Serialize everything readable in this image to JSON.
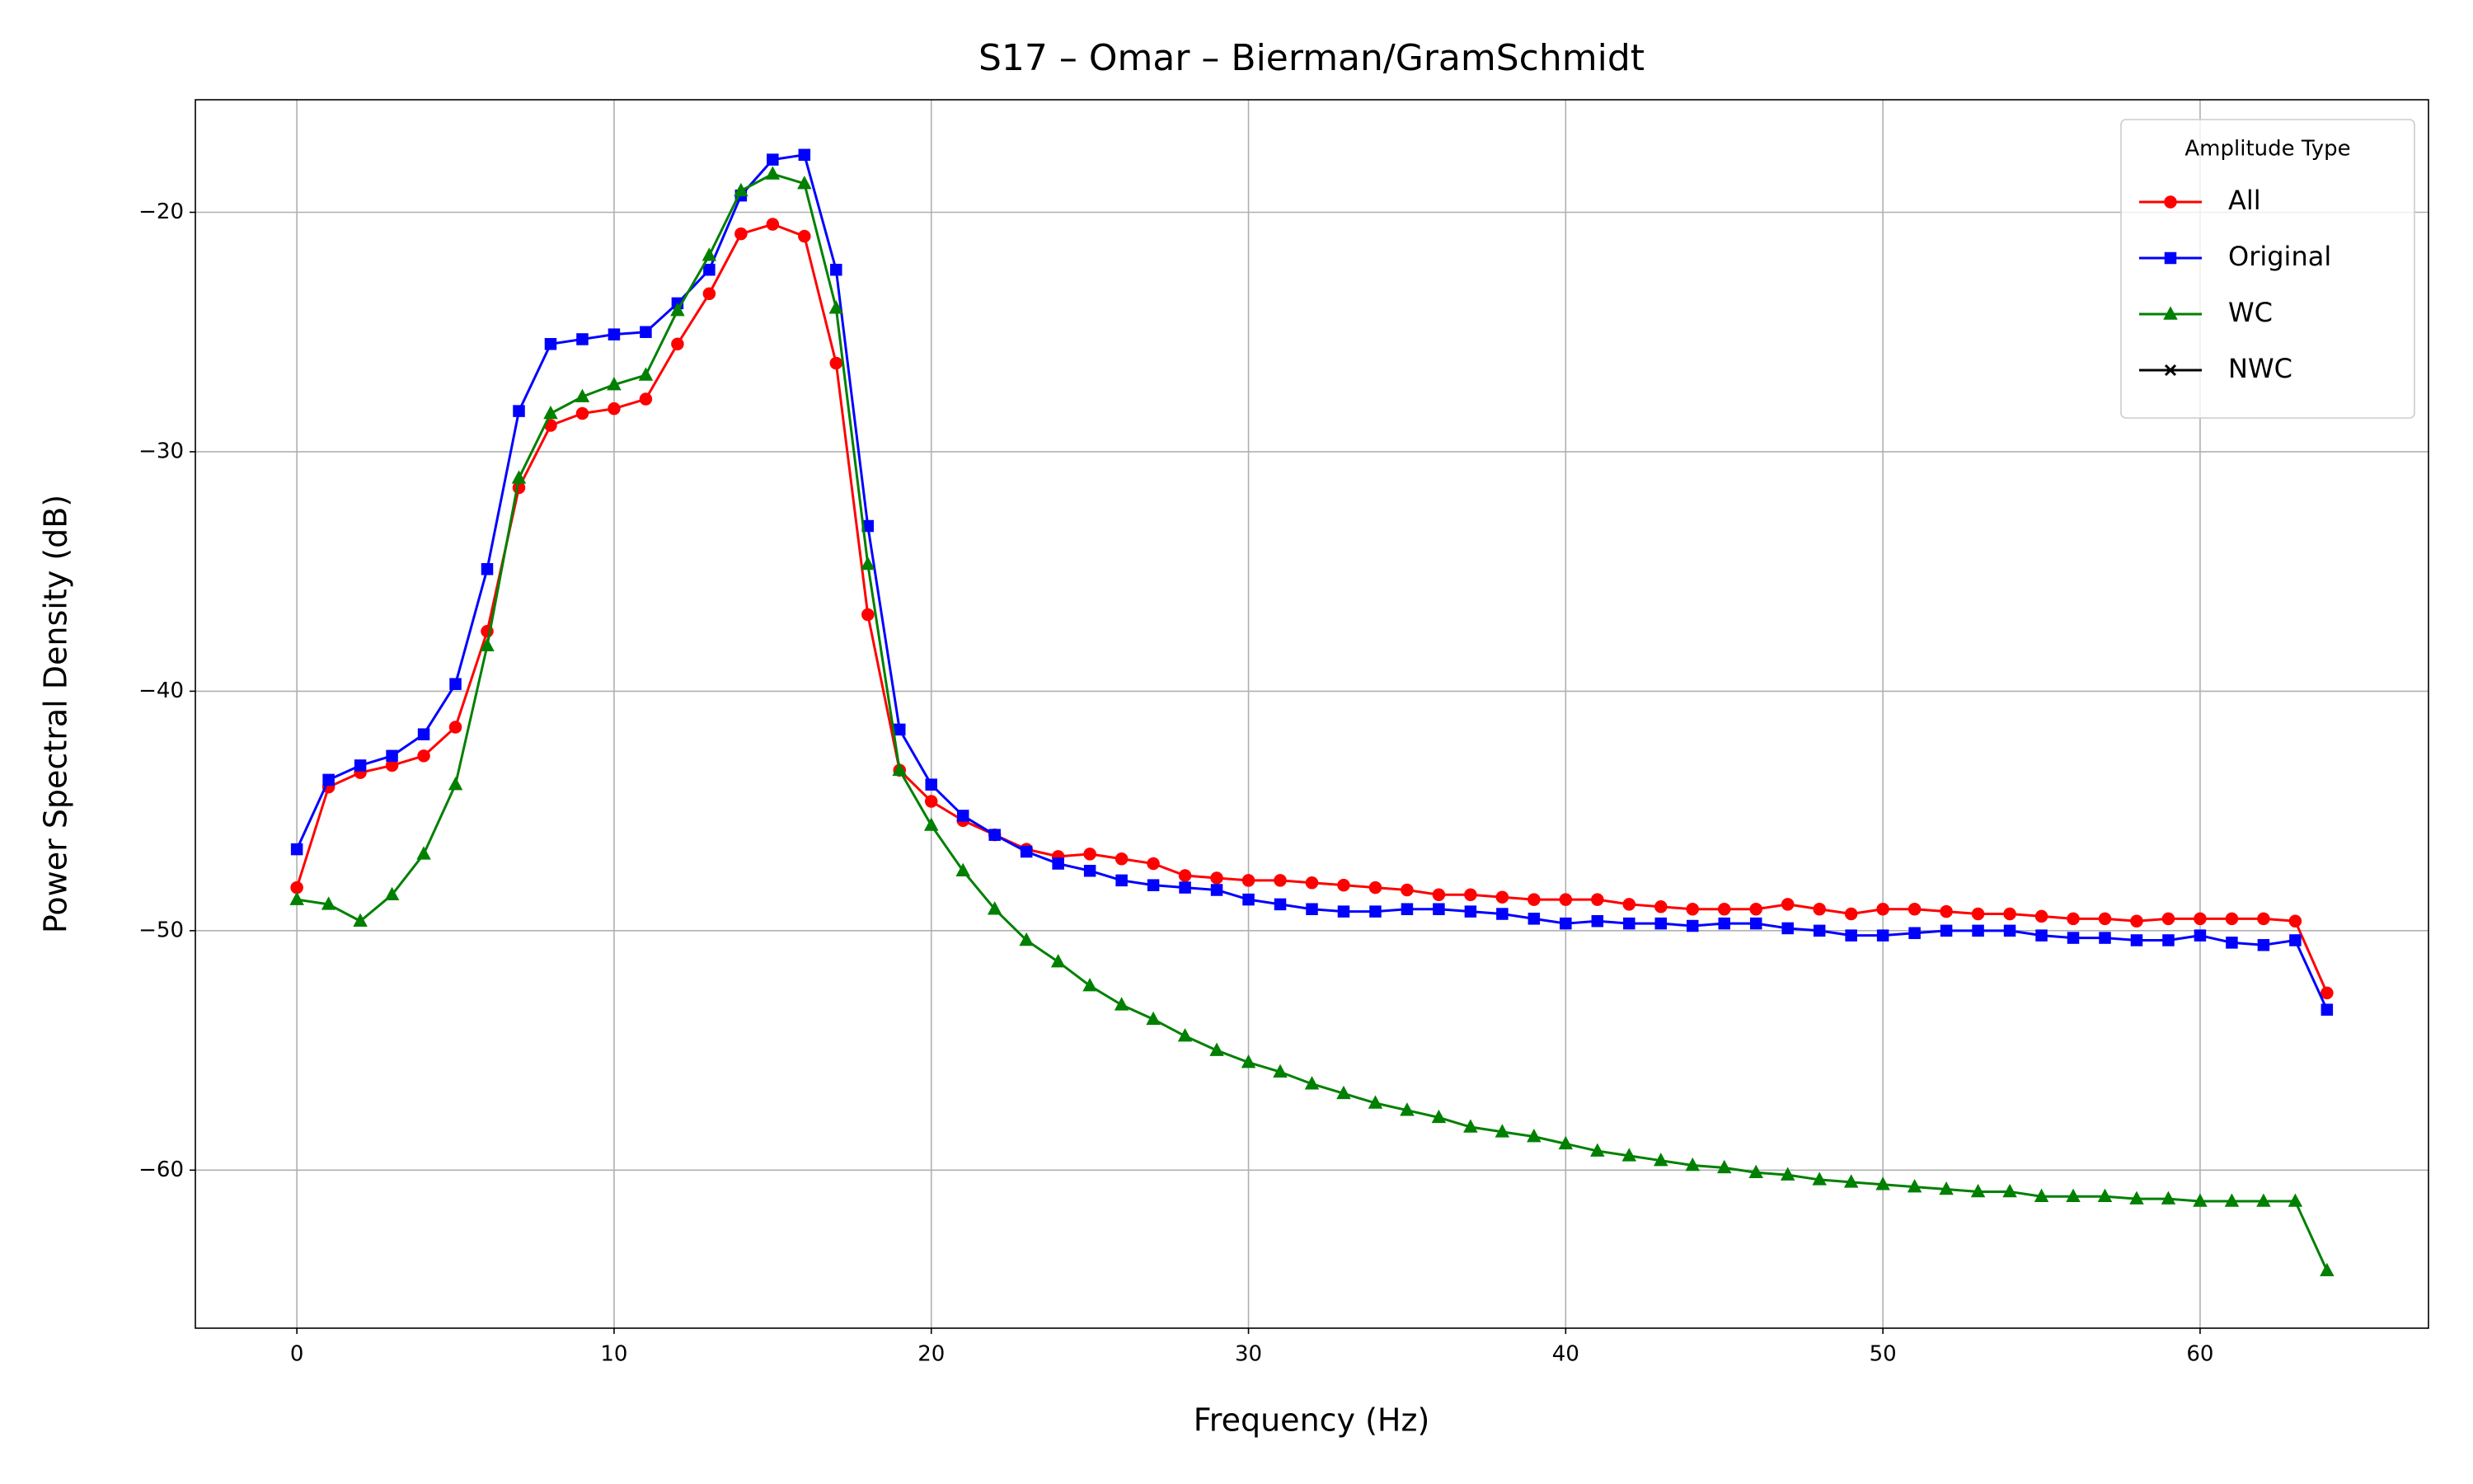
{
  "chart_data": {
    "type": "line",
    "title": "S17 – Omar – Bierman/GramSchmidt",
    "xlabel": "Frequency (Hz)",
    "ylabel": "Power Spectral Density (dB)",
    "x": [
      0,
      1,
      2,
      3,
      4,
      5,
      6,
      7,
      8,
      9,
      10,
      11,
      12,
      13,
      14,
      15,
      16,
      17,
      18,
      19,
      20,
      21,
      22,
      23,
      24,
      25,
      26,
      27,
      28,
      29,
      30,
      31,
      32,
      33,
      34,
      35,
      36,
      37,
      38,
      39,
      40,
      41,
      42,
      43,
      44,
      45,
      46,
      47,
      48,
      49,
      50,
      51,
      52,
      53,
      54,
      55,
      56,
      57,
      58,
      59,
      60,
      61,
      62,
      63,
      64
    ],
    "series": [
      {
        "name": "All",
        "color": "#ff0000",
        "marker": "o",
        "values": [
          -48.2,
          -44.0,
          -43.4,
          -43.1,
          -42.7,
          -41.5,
          -37.5,
          -31.5,
          -28.9,
          -28.4,
          -28.2,
          -27.8,
          -25.5,
          -23.4,
          -20.9,
          -20.5,
          -21.0,
          -26.3,
          -36.8,
          -43.3,
          -44.6,
          -45.4,
          -46.0,
          -46.6,
          -46.9,
          -46.8,
          -47.0,
          -47.2,
          -47.7,
          -47.8,
          -47.9,
          -47.9,
          -48.0,
          -48.1,
          -48.2,
          -48.3,
          -48.5,
          -48.5,
          -48.6,
          -48.7,
          -48.7,
          -48.7,
          -48.9,
          -49.0,
          -49.1,
          -49.1,
          -49.1,
          -48.9,
          -49.1,
          -49.3,
          -49.1,
          -49.1,
          -49.2,
          -49.3,
          -49.3,
          -49.4,
          -49.5,
          -49.5,
          -49.6,
          -49.5,
          -49.5,
          -49.5,
          -49.5,
          -49.6,
          -52.6
        ]
      },
      {
        "name": "Original",
        "color": "#0000ff",
        "marker": "s",
        "values": [
          -46.6,
          -43.7,
          -43.1,
          -42.7,
          -41.8,
          -39.7,
          -34.9,
          -28.3,
          -25.5,
          -25.3,
          -25.1,
          -25.0,
          -23.8,
          -22.4,
          -19.3,
          -17.8,
          -17.6,
          -22.4,
          -33.1,
          -41.6,
          -43.9,
          -45.2,
          -46.0,
          -46.7,
          -47.2,
          -47.5,
          -47.9,
          -48.1,
          -48.2,
          -48.3,
          -48.7,
          -48.9,
          -49.1,
          -49.2,
          -49.2,
          -49.1,
          -49.1,
          -49.2,
          -49.3,
          -49.5,
          -49.7,
          -49.6,
          -49.7,
          -49.7,
          -49.8,
          -49.7,
          -49.7,
          -49.9,
          -50.0,
          -50.2,
          -50.2,
          -50.1,
          -50.0,
          -50.0,
          -50.0,
          -50.2,
          -50.3,
          -50.3,
          -50.4,
          -50.4,
          -50.2,
          -50.5,
          -50.6,
          -50.4,
          -53.3
        ]
      },
      {
        "name": "WC",
        "color": "#008000",
        "marker": "^",
        "values": [
          -48.7,
          -48.9,
          -49.6,
          -48.5,
          -46.8,
          -43.9,
          -38.1,
          -31.1,
          -28.4,
          -27.7,
          -27.2,
          -26.8,
          -24.1,
          -21.8,
          -19.1,
          -18.4,
          -18.8,
          -24.0,
          -34.7,
          -43.3,
          -45.6,
          -47.5,
          -49.1,
          -50.4,
          -51.3,
          -52.3,
          -53.1,
          -53.7,
          -54.4,
          -55.0,
          -55.5,
          -55.9,
          -56.4,
          -56.8,
          -57.2,
          -57.5,
          -57.8,
          -58.2,
          -58.4,
          -58.6,
          -58.9,
          -59.2,
          -59.4,
          -59.6,
          -59.8,
          -59.9,
          -60.1,
          -60.2,
          -60.4,
          -60.5,
          -60.6,
          -60.7,
          -60.8,
          -60.9,
          -60.9,
          -61.1,
          -61.1,
          -61.1,
          -61.2,
          -61.2,
          -61.3,
          -61.3,
          -61.3,
          -61.3,
          -64.2
        ]
      },
      {
        "name": "NWC",
        "color": "#000000",
        "marker": "x",
        "values": [
          null,
          null,
          null,
          null,
          null,
          null,
          null,
          null,
          null,
          null,
          null,
          null,
          null,
          null,
          null,
          null,
          null,
          null,
          null,
          null,
          null,
          null,
          null,
          null,
          null,
          null,
          null,
          null,
          null,
          null,
          null,
          null,
          null,
          null,
          null,
          null,
          null,
          null,
          null,
          null,
          null,
          null,
          null,
          null,
          null,
          null,
          null,
          null,
          null,
          null,
          null,
          null,
          null,
          null,
          null,
          null,
          null,
          null,
          null,
          null,
          null,
          null,
          null,
          null,
          null
        ]
      }
    ],
    "xlim": [
      -3.2,
      67.2
    ],
    "ylim": [
      -66.6,
      -15.3
    ],
    "xticks": [
      0,
      10,
      20,
      30,
      40,
      50,
      60
    ],
    "yticks": [
      {
        "value": -60,
        "label": "−60"
      },
      {
        "value": -50,
        "label": "−50"
      },
      {
        "value": -40,
        "label": "−40"
      },
      {
        "value": -30,
        "label": "−30"
      },
      {
        "value": -20,
        "label": "−20"
      }
    ],
    "grid": true,
    "legend": {
      "title": "Amplitude Type",
      "loc": "upper right"
    }
  }
}
